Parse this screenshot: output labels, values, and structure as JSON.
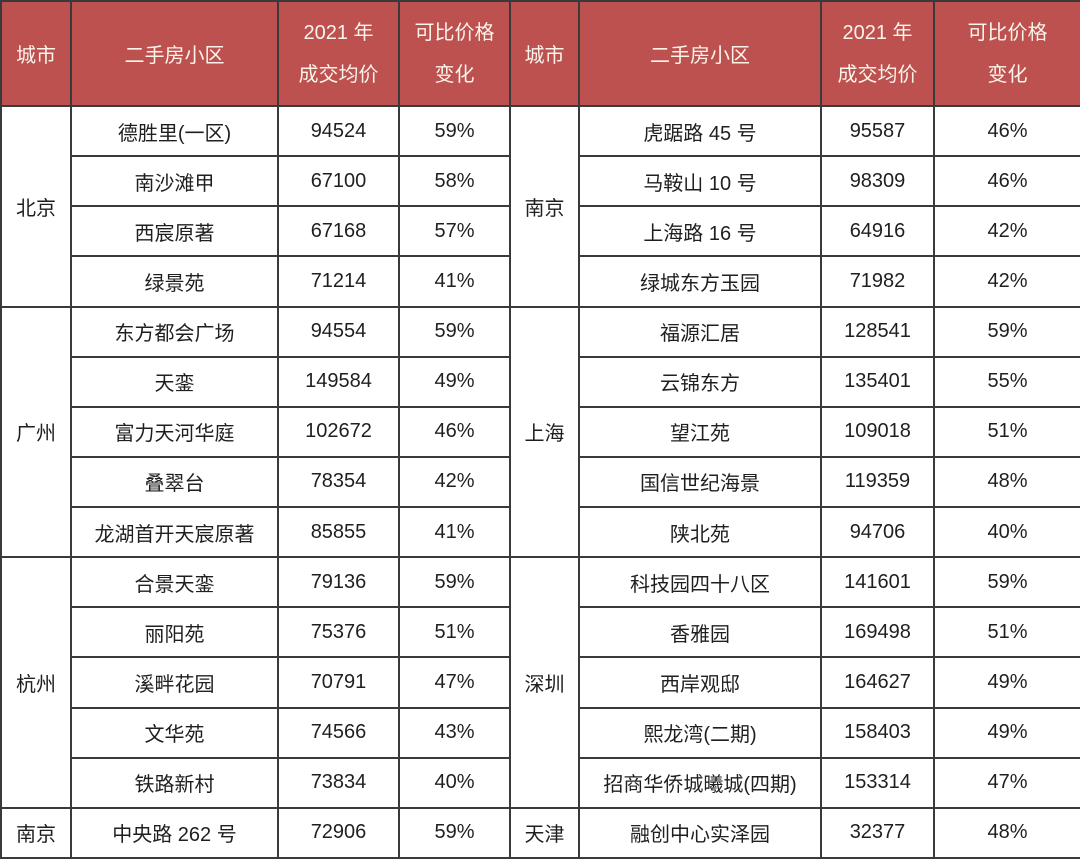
{
  "colors": {
    "header_bg": "#bc5150",
    "header_text": "#faf4ea",
    "border": "#3a3a3a",
    "body_text": "#1f1f1f",
    "background": "#ffffff"
  },
  "header": {
    "city": "城市",
    "community": "二手房小区",
    "price_lines": [
      "2021 年",
      "成交均价"
    ],
    "change_lines": [
      "可比价格",
      "变化"
    ]
  },
  "chart_data": {
    "type": "table",
    "title": "",
    "columns": [
      "城市",
      "二手房小区",
      "2021 年成交均价",
      "可比价格变化"
    ],
    "layout": "two side-by-side table halves sharing identical headers",
    "sides": [
      {
        "groups": [
          {
            "city": "北京",
            "rows": [
              {
                "community": "德胜里(一区)",
                "price": "94524",
                "change": "59%"
              },
              {
                "community": "南沙滩甲",
                "price": "67100",
                "change": "58%"
              },
              {
                "community": "西宸原著",
                "price": "67168",
                "change": "57%"
              },
              {
                "community": "绿景苑",
                "price": "71214",
                "change": "41%"
              }
            ]
          },
          {
            "city": "广州",
            "rows": [
              {
                "community": "东方都会广场",
                "price": "94554",
                "change": "59%"
              },
              {
                "community": "天銮",
                "price": "149584",
                "change": "49%"
              },
              {
                "community": "富力天河华庭",
                "price": "102672",
                "change": "46%"
              },
              {
                "community": "叠翠台",
                "price": "78354",
                "change": "42%"
              },
              {
                "community": "龙湖首开天宸原著",
                "price": "85855",
                "change": "41%"
              }
            ]
          },
          {
            "city": "杭州",
            "rows": [
              {
                "community": "合景天銮",
                "price": "79136",
                "change": "59%"
              },
              {
                "community": "丽阳苑",
                "price": "75376",
                "change": "51%"
              },
              {
                "community": "溪畔花园",
                "price": "70791",
                "change": "47%"
              },
              {
                "community": "文华苑",
                "price": "74566",
                "change": "43%"
              },
              {
                "community": "铁路新村",
                "price": "73834",
                "change": "40%"
              }
            ]
          },
          {
            "city": "南京",
            "rows": [
              {
                "community": "中央路 262 号",
                "price": "72906",
                "change": "59%"
              }
            ]
          }
        ]
      },
      {
        "groups": [
          {
            "city": "南京",
            "rows": [
              {
                "community": "虎踞路 45 号",
                "price": "95587",
                "change": "46%"
              },
              {
                "community": "马鞍山 10 号",
                "price": "98309",
                "change": "46%"
              },
              {
                "community": "上海路 16 号",
                "price": "64916",
                "change": "42%"
              },
              {
                "community": "绿城东方玉园",
                "price": "71982",
                "change": "42%"
              }
            ]
          },
          {
            "city": "上海",
            "rows": [
              {
                "community": "福源汇居",
                "price": "128541",
                "change": "59%"
              },
              {
                "community": "云锦东方",
                "price": "135401",
                "change": "55%"
              },
              {
                "community": "望江苑",
                "price": "109018",
                "change": "51%"
              },
              {
                "community": "国信世纪海景",
                "price": "119359",
                "change": "48%"
              },
              {
                "community": "陕北苑",
                "price": "94706",
                "change": "40%"
              }
            ]
          },
          {
            "city": "深圳",
            "rows": [
              {
                "community": "科技园四十八区",
                "price": "141601",
                "change": "59%"
              },
              {
                "community": "香雅园",
                "price": "169498",
                "change": "51%"
              },
              {
                "community": "西岸观邸",
                "price": "164627",
                "change": "49%"
              },
              {
                "community": "熙龙湾(二期)",
                "price": "158403",
                "change": "49%"
              },
              {
                "community": "招商华侨城曦城(四期)",
                "price": "153314",
                "change": "47%"
              }
            ]
          },
          {
            "city": "天津",
            "rows": [
              {
                "community": "融创中心实泽园",
                "price": "32377",
                "change": "48%"
              }
            ]
          }
        ]
      }
    ]
  }
}
